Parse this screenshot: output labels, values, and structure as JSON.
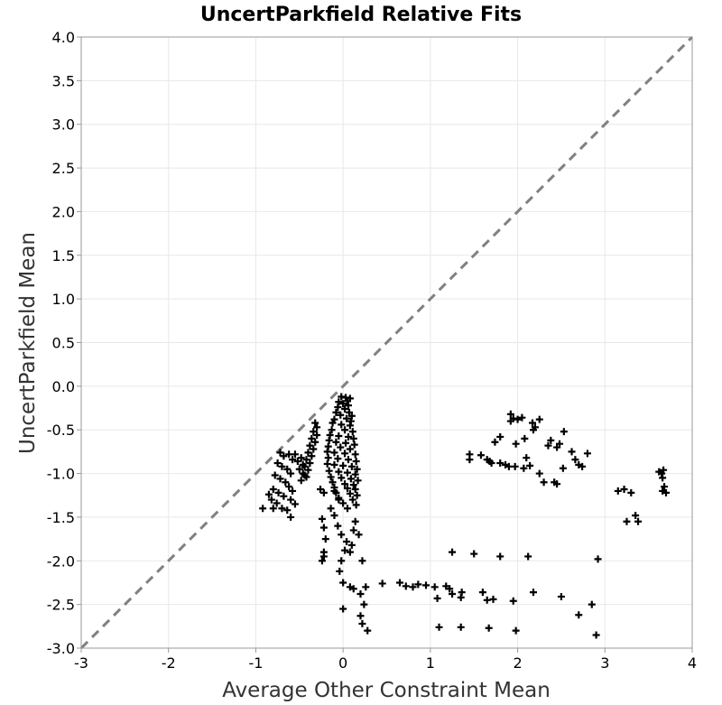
{
  "chart_data": {
    "type": "scatter",
    "title": "UncertParkfield Relative Fits",
    "xlabel": "Average Other Constraint Mean",
    "ylabel": "UncertParkfield Mean",
    "xlim": [
      -3,
      4
    ],
    "ylim": [
      -3,
      4
    ],
    "x_ticks": [
      "-3",
      "-2",
      "-1",
      "0",
      "1",
      "2",
      "3",
      "4"
    ],
    "y_ticks": [
      "-3.0",
      "-2.5",
      "-2.0",
      "-1.5",
      "-1.0",
      "-0.5",
      "0.0",
      "0.5",
      "1.0",
      "1.5",
      "2.0",
      "2.5",
      "3.0",
      "3.5",
      "4.0"
    ],
    "grid": true,
    "reference_line": {
      "style": "dashed",
      "color": "#808080",
      "from": [
        -3,
        -3
      ],
      "to": [
        4,
        4
      ]
    },
    "marker": "plus",
    "marker_color": "#000000",
    "series": [
      {
        "points": [
          [
            -0.02,
            -0.12
          ],
          [
            0.03,
            -0.13
          ],
          [
            0.08,
            -0.14
          ],
          [
            -0.05,
            -0.18
          ],
          [
            0.05,
            -0.17
          ],
          [
            0.0,
            -0.2
          ],
          [
            -0.06,
            -0.24
          ],
          [
            0.06,
            -0.22
          ],
          [
            0.02,
            -0.26
          ],
          [
            -0.08,
            -0.3
          ],
          [
            0.07,
            -0.3
          ],
          [
            -0.03,
            -0.33
          ],
          [
            0.1,
            -0.34
          ],
          [
            -0.1,
            -0.38
          ],
          [
            0.04,
            -0.37
          ],
          [
            0.09,
            -0.4
          ],
          [
            -0.12,
            -0.42
          ],
          [
            -0.02,
            -0.44
          ],
          [
            0.08,
            -0.45
          ],
          [
            -0.13,
            -0.5
          ],
          [
            0.02,
            -0.5
          ],
          [
            0.11,
            -0.52
          ],
          [
            -0.15,
            -0.56
          ],
          [
            -0.05,
            -0.57
          ],
          [
            0.06,
            -0.58
          ],
          [
            0.12,
            -0.6
          ],
          [
            -0.16,
            -0.62
          ],
          [
            -0.08,
            -0.64
          ],
          [
            0.03,
            -0.65
          ],
          [
            0.13,
            -0.67
          ],
          [
            -0.17,
            -0.69
          ],
          [
            -0.03,
            -0.7
          ],
          [
            0.08,
            -0.72
          ],
          [
            -0.18,
            -0.75
          ],
          [
            -0.1,
            -0.76
          ],
          [
            0.02,
            -0.77
          ],
          [
            0.14,
            -0.78
          ],
          [
            -0.17,
            -0.82
          ],
          [
            -0.06,
            -0.83
          ],
          [
            0.06,
            -0.84
          ],
          [
            0.15,
            -0.86
          ],
          [
            -0.18,
            -0.89
          ],
          [
            -0.1,
            -0.9
          ],
          [
            0.0,
            -0.91
          ],
          [
            0.1,
            -0.92
          ],
          [
            0.16,
            -0.95
          ],
          [
            -0.16,
            -0.97
          ],
          [
            -0.05,
            -0.98
          ],
          [
            0.05,
            -0.99
          ],
          [
            0.14,
            -1.01
          ],
          [
            -0.14,
            -1.04
          ],
          [
            -0.02,
            -1.05
          ],
          [
            0.09,
            -1.06
          ],
          [
            0.17,
            -1.08
          ],
          [
            -0.12,
            -1.1
          ],
          [
            0.02,
            -1.12
          ],
          [
            0.12,
            -1.13
          ],
          [
            -0.1,
            -1.16
          ],
          [
            0.05,
            -1.17
          ],
          [
            0.14,
            -1.18
          ],
          [
            -0.08,
            -1.22
          ],
          [
            0.08,
            -1.23
          ],
          [
            0.16,
            -1.25
          ],
          [
            -0.05,
            -1.28
          ],
          [
            0.11,
            -1.3
          ],
          [
            0.0,
            -1.34
          ],
          [
            0.15,
            -1.36
          ],
          [
            0.05,
            -1.4
          ],
          [
            -0.32,
            -0.42
          ],
          [
            -0.3,
            -0.47
          ],
          [
            -0.34,
            -0.52
          ],
          [
            -0.3,
            -0.56
          ],
          [
            -0.36,
            -0.6
          ],
          [
            -0.32,
            -0.64
          ],
          [
            -0.38,
            -0.68
          ],
          [
            -0.34,
            -0.72
          ],
          [
            -0.4,
            -0.76
          ],
          [
            -0.36,
            -0.8
          ],
          [
            -0.42,
            -0.84
          ],
          [
            -0.38,
            -0.88
          ],
          [
            -0.44,
            -0.92
          ],
          [
            -0.4,
            -0.96
          ],
          [
            -0.46,
            -1.0
          ],
          [
            -0.42,
            -1.04
          ],
          [
            -0.48,
            -1.08
          ],
          [
            -0.44,
            -1.02
          ],
          [
            -0.5,
            -0.95
          ],
          [
            -0.46,
            -0.9
          ],
          [
            -0.52,
            -0.86
          ],
          [
            -0.48,
            -0.82
          ],
          [
            -0.55,
            -0.78
          ],
          [
            -0.72,
            -0.76
          ],
          [
            -0.68,
            -0.8
          ],
          [
            -0.62,
            -0.78
          ],
          [
            -0.58,
            -0.84
          ],
          [
            -0.75,
            -0.88
          ],
          [
            -0.7,
            -0.92
          ],
          [
            -0.64,
            -0.95
          ],
          [
            -0.6,
            -1.0
          ],
          [
            -0.78,
            -1.02
          ],
          [
            -0.72,
            -1.06
          ],
          [
            -0.66,
            -1.1
          ],
          [
            -0.62,
            -1.15
          ],
          [
            -0.8,
            -1.18
          ],
          [
            -0.74,
            -1.22
          ],
          [
            -0.68,
            -1.26
          ],
          [
            -0.6,
            -1.3
          ],
          [
            -0.85,
            -1.24
          ],
          [
            -0.82,
            -1.3
          ],
          [
            -0.76,
            -1.34
          ],
          [
            -0.7,
            -1.4
          ],
          [
            -0.64,
            -1.42
          ],
          [
            -0.92,
            -1.4
          ],
          [
            -0.8,
            -1.4
          ],
          [
            -0.6,
            -1.5
          ],
          [
            -0.55,
            -1.35
          ],
          [
            -0.58,
            -1.2
          ],
          [
            -0.26,
            -1.18
          ],
          [
            -0.22,
            -1.22
          ],
          [
            -0.1,
            -1.2
          ],
          [
            -0.05,
            -1.3
          ],
          [
            -0.14,
            -1.4
          ],
          [
            -0.24,
            -1.52
          ],
          [
            -0.22,
            -1.62
          ],
          [
            -0.2,
            -1.75
          ],
          [
            -0.22,
            -1.9
          ],
          [
            -0.24,
            -2.0
          ],
          [
            -0.22,
            -1.95
          ],
          [
            -0.06,
            -1.6
          ],
          [
            -0.02,
            -1.7
          ],
          [
            0.04,
            -1.78
          ],
          [
            0.08,
            -1.9
          ],
          [
            0.1,
            -1.82
          ],
          [
            0.14,
            -1.55
          ],
          [
            0.18,
            -1.7
          ],
          [
            0.22,
            -2.0
          ],
          [
            -0.04,
            -2.12
          ],
          [
            0.0,
            -2.25
          ],
          [
            0.08,
            -2.3
          ],
          [
            0.12,
            -2.32
          ],
          [
            0.2,
            -2.38
          ],
          [
            0.24,
            -2.5
          ],
          [
            0.2,
            -2.63
          ],
          [
            0.22,
            -2.72
          ],
          [
            0.26,
            -2.3
          ],
          [
            0.0,
            -2.55
          ],
          [
            0.28,
            -2.8
          ],
          [
            0.12,
            -1.65
          ],
          [
            -0.1,
            -1.48
          ],
          [
            0.02,
            -1.88
          ],
          [
            -0.02,
            -2.0
          ],
          [
            0.45,
            -2.26
          ],
          [
            0.65,
            -2.25
          ],
          [
            0.72,
            -2.29
          ],
          [
            0.8,
            -2.3
          ],
          [
            0.86,
            -2.27
          ],
          [
            0.95,
            -2.28
          ],
          [
            1.05,
            -2.3
          ],
          [
            1.18,
            -2.29
          ],
          [
            1.22,
            -2.32
          ],
          [
            1.25,
            -2.38
          ],
          [
            1.36,
            -2.36
          ],
          [
            1.08,
            -2.43
          ],
          [
            1.35,
            -2.42
          ],
          [
            1.6,
            -2.36
          ],
          [
            1.65,
            -2.45
          ],
          [
            1.72,
            -2.44
          ],
          [
            1.95,
            -2.46
          ],
          [
            2.18,
            -2.36
          ],
          [
            2.5,
            -2.41
          ],
          [
            2.7,
            -2.62
          ],
          [
            2.85,
            -2.5
          ],
          [
            1.25,
            -1.9
          ],
          [
            1.5,
            -1.92
          ],
          [
            1.8,
            -1.95
          ],
          [
            2.12,
            -1.95
          ],
          [
            2.92,
            -1.98
          ],
          [
            1.1,
            -2.76
          ],
          [
            1.35,
            -2.76
          ],
          [
            1.67,
            -2.77
          ],
          [
            1.98,
            -2.8
          ],
          [
            2.9,
            -2.85
          ],
          [
            1.45,
            -0.78
          ],
          [
            1.45,
            -0.84
          ],
          [
            1.58,
            -0.79
          ],
          [
            1.65,
            -0.84
          ],
          [
            1.68,
            -0.86
          ],
          [
            1.7,
            -0.88
          ],
          [
            1.8,
            -0.88
          ],
          [
            1.86,
            -0.9
          ],
          [
            1.9,
            -0.92
          ],
          [
            1.97,
            -0.92
          ],
          [
            2.07,
            -0.94
          ],
          [
            2.14,
            -0.91
          ],
          [
            1.92,
            -0.32
          ],
          [
            1.95,
            -0.37
          ],
          [
            2.0,
            -0.38
          ],
          [
            2.05,
            -0.36
          ],
          [
            1.92,
            -0.4
          ],
          [
            1.74,
            -0.64
          ],
          [
            1.8,
            -0.58
          ],
          [
            1.98,
            -0.66
          ],
          [
            2.08,
            -0.6
          ],
          [
            2.17,
            -0.42
          ],
          [
            2.2,
            -0.47
          ],
          [
            2.25,
            -0.38
          ],
          [
            2.18,
            -0.5
          ],
          [
            2.1,
            -0.82
          ],
          [
            2.25,
            -1.0
          ],
          [
            2.3,
            -1.1
          ],
          [
            2.35,
            -0.68
          ],
          [
            2.38,
            -0.62
          ],
          [
            2.45,
            -0.7
          ],
          [
            2.48,
            -0.66
          ],
          [
            2.53,
            -0.52
          ],
          [
            2.42,
            -1.1
          ],
          [
            2.45,
            -1.12
          ],
          [
            2.52,
            -0.94
          ],
          [
            2.62,
            -0.75
          ],
          [
            2.66,
            -0.84
          ],
          [
            2.7,
            -0.9
          ],
          [
            2.74,
            -0.92
          ],
          [
            2.8,
            -0.77
          ],
          [
            3.15,
            -1.2
          ],
          [
            3.22,
            -1.18
          ],
          [
            3.3,
            -1.22
          ],
          [
            3.25,
            -1.55
          ],
          [
            3.35,
            -1.48
          ],
          [
            3.38,
            -1.55
          ],
          [
            3.62,
            -0.98
          ],
          [
            3.65,
            -1.0
          ],
          [
            3.66,
            -1.05
          ],
          [
            3.67,
            -0.96
          ],
          [
            3.68,
            -1.15
          ],
          [
            3.7,
            -1.22
          ],
          [
            3.66,
            -1.2
          ]
        ]
      }
    ]
  }
}
